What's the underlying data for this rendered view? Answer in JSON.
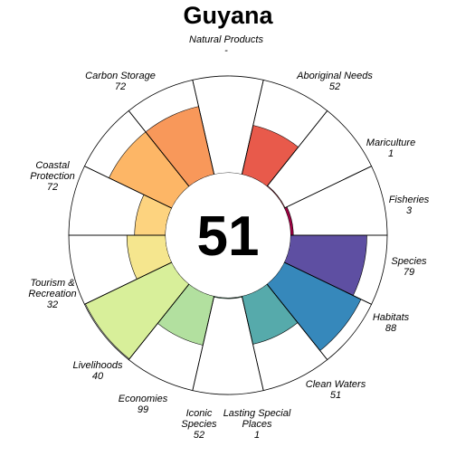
{
  "chart_data": {
    "type": "flower",
    "title": "Guyana",
    "center_score": "51",
    "ylim": [
      0,
      100
    ],
    "goals": [
      {
        "name": "Natural Products",
        "score_label": "-",
        "value": null,
        "color": "#ffffff"
      },
      {
        "name": "Aboriginal Needs",
        "score_label": "52",
        "value": 52,
        "color": "#e85a4b"
      },
      {
        "name": "Mariculture",
        "score_label": "1",
        "value": 1,
        "color": "#cf3a4f"
      },
      {
        "name": "Fisheries",
        "score_label": "3",
        "value": 3,
        "color": "#9e0142"
      },
      {
        "name": "Species",
        "score_label": "79",
        "value": 79,
        "color": "#5e4fa2"
      },
      {
        "name": "Habitats",
        "score_label": "88",
        "value": 88,
        "color": "#3688bb"
      },
      {
        "name": "Clean Waters",
        "score_label": "51",
        "value": 51,
        "color": "#56aaab"
      },
      {
        "name": "Lasting Special Places",
        "score_label": "1",
        "value": 1,
        "color": "#83cca4"
      },
      {
        "name": "Iconic Species",
        "score_label": "52",
        "value": 52,
        "color": "#b2e09f"
      },
      {
        "name": "Economies",
        "score_label": "99",
        "value": 99,
        "color": "#d8ef9a"
      },
      {
        "name": "Livelihoods",
        "score_label": "40",
        "value": 40,
        "color": "#f5e68e"
      },
      {
        "name": "Tourism & Recreation",
        "score_label": "32",
        "value": 32,
        "color": "#fdd37f"
      },
      {
        "name": "Coastal Protection",
        "score_label": "72",
        "value": 72,
        "color": "#fdb666"
      },
      {
        "name": "Carbon Storage",
        "score_label": "72",
        "value": 72,
        "color": "#f8985a"
      }
    ]
  }
}
